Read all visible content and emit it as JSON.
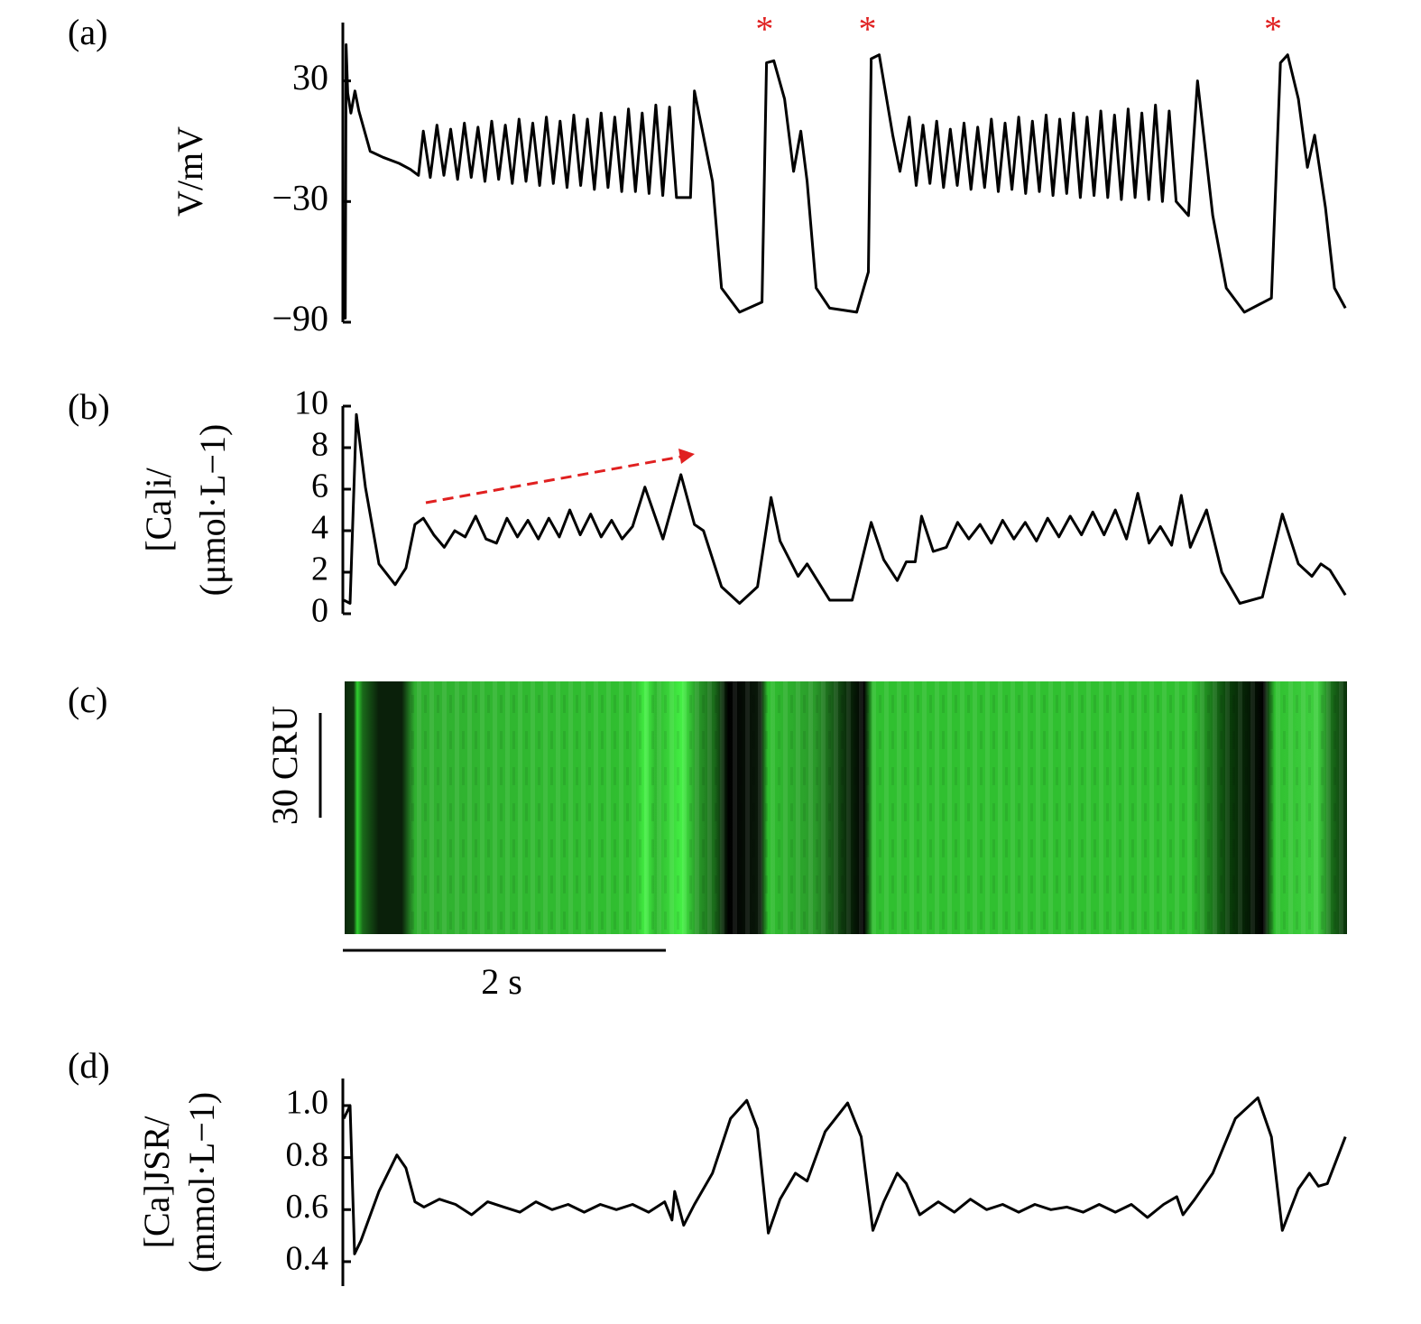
{
  "chart_data": [
    {
      "type": "line",
      "label": "(a)",
      "ylabel": [
        "V/mV"
      ],
      "color": "#000000",
      "annotation_color": "#e02020",
      "ylim": [
        -90,
        59
      ],
      "yticks": [
        {
          "value": -90,
          "label": "−90"
        },
        {
          "value": -30,
          "label": "−30"
        },
        30
      ],
      "xlim": [
        0,
        6.24
      ],
      "x": [
        0.0,
        0.015,
        0.02,
        0.03,
        0.05,
        0.075,
        0.1,
        0.17,
        0.25,
        0.35,
        0.42,
        0.47,
        0.5,
        0.543,
        0.585,
        0.628,
        0.67,
        0.713,
        0.755,
        0.798,
        0.84,
        0.883,
        0.925,
        0.968,
        1.01,
        1.053,
        1.095,
        1.138,
        1.18,
        1.223,
        1.265,
        1.308,
        1.35,
        1.393,
        1.435,
        1.478,
        1.52,
        1.563,
        1.605,
        1.648,
        1.69,
        1.733,
        1.775,
        1.818,
        1.86,
        1.903,
        1.945,
        1.988,
        2.03,
        2.073,
        2.16,
        2.185,
        2.297,
        2.353,
        2.465,
        2.605,
        2.633,
        2.678,
        2.745,
        2.801,
        2.846,
        2.885,
        2.941,
        3.025,
        3.193,
        3.266,
        3.283,
        3.333,
        3.417,
        3.462,
        3.52,
        3.563,
        3.605,
        3.648,
        3.69,
        3.733,
        3.775,
        3.818,
        3.86,
        3.903,
        3.945,
        3.988,
        4.03,
        4.073,
        4.115,
        4.158,
        4.2,
        4.243,
        4.285,
        4.328,
        4.37,
        4.413,
        4.455,
        4.498,
        4.54,
        4.583,
        4.625,
        4.668,
        4.71,
        4.753,
        4.795,
        4.838,
        4.88,
        4.923,
        4.965,
        5.008,
        5.05,
        5.093,
        5.135,
        5.178,
        5.255,
        5.311,
        5.406,
        5.49,
        5.602,
        5.77,
        5.826,
        5.871,
        5.938,
        5.994,
        6.039,
        6.106,
        6.162,
        6.23
      ],
      "values": [
        -88,
        -88,
        48,
        24,
        14,
        25,
        15,
        -5,
        -8,
        -11,
        -14,
        -17,
        5,
        -18,
        8,
        -17,
        6,
        -19,
        9,
        -18,
        7,
        -20,
        10,
        -19,
        8,
        -21,
        11,
        -20,
        9,
        -22,
        12,
        -21,
        10,
        -23,
        13,
        -22,
        11,
        -24,
        14,
        -23,
        12,
        -25,
        16,
        -25,
        14,
        -26,
        18,
        -27,
        17,
        -28,
        -28,
        25,
        -20,
        -73,
        -85,
        -80,
        39,
        40,
        21,
        -15,
        5,
        -20,
        -73,
        -83,
        -85,
        -65,
        41,
        43,
        3,
        -15,
        12,
        -22,
        8,
        -21,
        10,
        -23,
        6,
        -22,
        9,
        -24,
        7,
        -23,
        11,
        -25,
        9,
        -24,
        12,
        -26,
        10,
        -25,
        13,
        -27,
        11,
        -26,
        14,
        -28,
        12,
        -27,
        15,
        -28,
        13,
        -29,
        16,
        -28,
        14,
        -29,
        18,
        -30,
        15,
        -30,
        -37,
        30,
        -37,
        -73,
        -85,
        -78,
        39,
        43,
        21,
        -13,
        3,
        -33,
        -73,
        -83
      ],
      "annotations": [
        {
          "text": "*",
          "x": 2.62,
          "y": 54
        },
        {
          "text": "*",
          "x": 3.26,
          "y": 54
        },
        {
          "text": "*",
          "x": 5.78,
          "y": 54
        }
      ]
    },
    {
      "type": "line",
      "label": "(b)",
      "ylabel": [
        "[Ca]i/",
        "(μmol·L−1)"
      ],
      "color": "#000000",
      "ylim": [
        0,
        10
      ],
      "yticks": [
        0,
        2,
        4,
        6,
        8,
        10
      ],
      "xlim": [
        0,
        6.24
      ],
      "x": [
        0.006,
        0.045,
        0.084,
        0.14,
        0.224,
        0.325,
        0.392,
        0.448,
        0.5,
        0.565,
        0.63,
        0.695,
        0.76,
        0.825,
        0.89,
        0.955,
        1.02,
        1.085,
        1.15,
        1.215,
        1.28,
        1.345,
        1.41,
        1.475,
        1.54,
        1.605,
        1.67,
        1.735,
        1.8,
        1.877,
        1.989,
        2.101,
        2.185,
        2.241,
        2.353,
        2.465,
        2.577,
        2.661,
        2.717,
        2.829,
        2.885,
        2.941,
        3.025,
        3.165,
        3.283,
        3.361,
        3.445,
        3.501,
        3.557,
        3.596,
        3.669,
        3.75,
        3.82,
        3.89,
        3.96,
        4.03,
        4.1,
        4.17,
        4.24,
        4.31,
        4.38,
        4.45,
        4.52,
        4.59,
        4.66,
        4.73,
        4.8,
        4.87,
        4.94,
        5.01,
        5.08,
        5.15,
        5.21,
        5.266,
        5.367,
        5.462,
        5.574,
        5.714,
        5.838,
        5.938,
        6.022,
        6.078,
        6.134,
        6.23
      ],
      "values": [
        0.65,
        0.5,
        9.6,
        6.1,
        2.4,
        1.4,
        2.2,
        4.3,
        4.6,
        3.8,
        3.2,
        4.0,
        3.7,
        4.7,
        3.6,
        3.4,
        4.6,
        3.7,
        4.5,
        3.6,
        4.6,
        3.7,
        5.0,
        3.8,
        4.8,
        3.7,
        4.5,
        3.6,
        4.2,
        6.1,
        3.6,
        6.7,
        4.3,
        4.0,
        1.3,
        0.5,
        1.3,
        5.6,
        3.5,
        1.8,
        2.4,
        1.7,
        0.65,
        0.65,
        4.4,
        2.6,
        1.6,
        2.5,
        2.5,
        4.7,
        3.0,
        3.2,
        4.4,
        3.6,
        4.3,
        3.4,
        4.5,
        3.6,
        4.4,
        3.5,
        4.6,
        3.7,
        4.7,
        3.8,
        4.9,
        3.8,
        5.0,
        3.6,
        5.8,
        3.4,
        4.2,
        3.3,
        5.7,
        3.2,
        5.0,
        2.0,
        0.5,
        0.8,
        4.8,
        2.4,
        1.8,
        2.4,
        2.1,
        0.9
      ]
    },
    {
      "type": "image",
      "label": "(c)",
      "scalebar_y": "30 CRU",
      "scalebar_x": "2 s"
    },
    {
      "type": "line",
      "label": "(d)",
      "ylabel": [
        "[Ca]JSR/",
        "(mmol·L−1)"
      ],
      "color": "#000000",
      "ylim": [
        0.306,
        1.104
      ],
      "yticks": [
        0.4,
        0.6,
        0.8,
        {
          "value": 1,
          "label": "1.0"
        }
      ],
      "xlim": [
        0,
        6.24
      ],
      "x": [
        0.006,
        0.045,
        0.073,
        0.112,
        0.224,
        0.336,
        0.392,
        0.448,
        0.504,
        0.6,
        0.7,
        0.8,
        0.9,
        1.0,
        1.1,
        1.2,
        1.3,
        1.4,
        1.5,
        1.6,
        1.7,
        1.8,
        1.9,
        2.0,
        2.045,
        2.062,
        2.118,
        2.185,
        2.297,
        2.409,
        2.51,
        2.577,
        2.644,
        2.717,
        2.812,
        2.885,
        2.997,
        3.137,
        3.221,
        3.294,
        3.361,
        3.445,
        3.501,
        3.585,
        3.7,
        3.8,
        3.9,
        4.0,
        4.1,
        4.2,
        4.3,
        4.4,
        4.5,
        4.6,
        4.7,
        4.8,
        4.9,
        5.0,
        5.1,
        5.182,
        5.221,
        5.294,
        5.406,
        5.546,
        5.686,
        5.77,
        5.838,
        5.938,
        6.006,
        6.062,
        6.118,
        6.23
      ],
      "values": [
        0.95,
        1.0,
        0.43,
        0.48,
        0.67,
        0.81,
        0.76,
        0.63,
        0.61,
        0.64,
        0.62,
        0.58,
        0.63,
        0.61,
        0.59,
        0.63,
        0.6,
        0.62,
        0.59,
        0.62,
        0.6,
        0.62,
        0.59,
        0.63,
        0.56,
        0.67,
        0.54,
        0.62,
        0.74,
        0.95,
        1.02,
        0.91,
        0.51,
        0.64,
        0.74,
        0.71,
        0.9,
        1.01,
        0.88,
        0.52,
        0.63,
        0.74,
        0.7,
        0.58,
        0.63,
        0.59,
        0.64,
        0.6,
        0.62,
        0.59,
        0.62,
        0.6,
        0.61,
        0.59,
        0.62,
        0.59,
        0.62,
        0.57,
        0.62,
        0.65,
        0.58,
        0.64,
        0.74,
        0.95,
        1.03,
        0.88,
        0.52,
        0.68,
        0.74,
        0.69,
        0.7,
        0.88
      ]
    }
  ]
}
